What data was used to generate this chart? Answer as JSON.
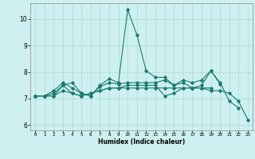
{
  "xlabel": "Humidex (Indice chaleur)",
  "ylabel": "",
  "bg_color": "#cff0f0",
  "line_color": "#1a7a6e",
  "grid_color": "#a8dada",
  "xlim": [
    -0.5,
    23.5
  ],
  "ylim": [
    5.8,
    10.6
  ],
  "yticks": [
    6,
    7,
    8,
    9,
    10
  ],
  "xticks": [
    0,
    1,
    2,
    3,
    4,
    5,
    6,
    7,
    8,
    9,
    10,
    11,
    12,
    13,
    14,
    15,
    16,
    17,
    18,
    19,
    20,
    21,
    22,
    23
  ],
  "series": [
    [
      7.1,
      7.1,
      7.2,
      7.5,
      7.6,
      7.2,
      7.1,
      7.5,
      7.75,
      7.6,
      10.35,
      9.4,
      8.05,
      7.8,
      7.8,
      7.5,
      7.6,
      7.4,
      7.5,
      8.05,
      7.6,
      6.9,
      6.65,
      null
    ],
    [
      7.1,
      7.1,
      7.3,
      7.6,
      7.4,
      7.2,
      7.1,
      7.45,
      7.6,
      7.55,
      7.6,
      7.6,
      7.6,
      7.6,
      7.7,
      7.5,
      7.7,
      7.6,
      7.7,
      8.05,
      7.55,
      null,
      null,
      null
    ],
    [
      7.1,
      7.1,
      7.1,
      7.5,
      7.2,
      7.1,
      7.2,
      7.3,
      7.4,
      7.4,
      7.5,
      7.5,
      7.5,
      7.5,
      7.1,
      7.2,
      7.4,
      7.4,
      7.4,
      7.4,
      null,
      null,
      null,
      null
    ],
    [
      7.1,
      7.1,
      7.1,
      7.3,
      7.2,
      7.1,
      7.2,
      7.3,
      7.4,
      7.4,
      7.4,
      7.4,
      7.4,
      7.4,
      7.4,
      7.4,
      7.4,
      7.4,
      7.4,
      7.3,
      7.3,
      7.2,
      6.9,
      6.2
    ]
  ],
  "figsize": [
    3.2,
    2.0
  ],
  "dpi": 100
}
